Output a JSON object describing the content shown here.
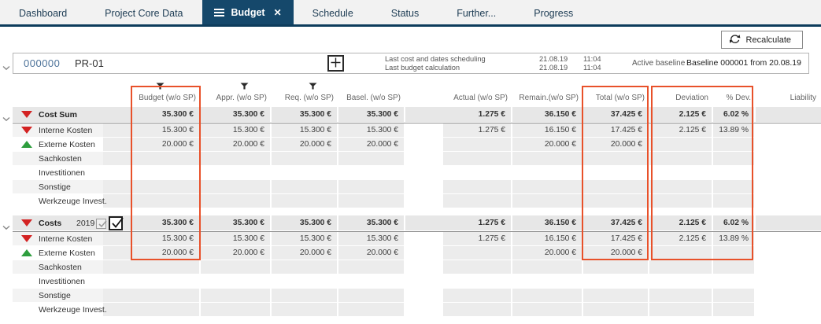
{
  "tabs": [
    {
      "label": "Dashboard",
      "active": false
    },
    {
      "label": "Project Core Data",
      "active": false
    },
    {
      "label": "Budget",
      "active": true
    },
    {
      "label": "Schedule",
      "active": false
    },
    {
      "label": "Status",
      "active": false
    },
    {
      "label": "Further...",
      "active": false
    },
    {
      "label": "Progress",
      "active": false
    }
  ],
  "toolbar": {
    "recalculate_label": "Recalculate"
  },
  "project_header": {
    "id": "000000",
    "name": "PR-01",
    "info": [
      {
        "label": "Last cost and dates scheduling",
        "date": "21.08.19",
        "time": "11:04"
      },
      {
        "label": "Last budget calculation",
        "date": "21.08.19",
        "time": "11:04"
      }
    ],
    "active_baseline_label": "Active baseline",
    "baseline_value": "Baseline 000001 from 20.08.19"
  },
  "icons": [
    "menu-icon",
    "close-tab-icon",
    "refresh-icon",
    "plus-icon",
    "chevron-down-icon",
    "filter-icon",
    "trend-down-icon",
    "trend-up-icon",
    "checkmark-icon"
  ],
  "table": {
    "columns": [
      {
        "label": "Budget (w/o SP)",
        "filtered": true
      },
      {
        "label": "Appr. (w/o SP)",
        "filtered": true
      },
      {
        "label": "Req. (w/o SP)",
        "filtered": true
      },
      {
        "label": "Basel. (w/o SP)",
        "filtered": false
      },
      {
        "label": "Actual (w/o SP)",
        "filtered": false
      },
      {
        "label": "Remain.(w/o SP)",
        "filtered": false
      },
      {
        "label": "Total (w/o SP)",
        "filtered": false
      },
      {
        "label": "Deviation",
        "filtered": false
      },
      {
        "label": "% Dev.",
        "filtered": false
      },
      {
        "label": "Liability",
        "filtered": false
      }
    ],
    "highlight_color": "#e8512a",
    "trend_colors": {
      "down": "#d32222",
      "up": "#2e9e3e"
    },
    "groups": [
      {
        "label": "Cost Sum",
        "year": null,
        "checkboxes": [],
        "trend": "down",
        "values": [
          "35.300 €",
          "35.300 €",
          "35.300 €",
          "35.300 €",
          "1.275 €",
          "36.150 €",
          "37.425 €",
          "2.125 €",
          "6.02 %",
          ""
        ],
        "rows": [
          {
            "label": "Interne Kosten",
            "trend": "down",
            "values": [
              "15.300 €",
              "15.300 €",
              "15.300 €",
              "15.300 €",
              "1.275 €",
              "16.150 €",
              "17.425 €",
              "2.125 €",
              "13.89 %",
              ""
            ]
          },
          {
            "label": "Externe Kosten",
            "trend": "up",
            "values": [
              "20.000 €",
              "20.000 €",
              "20.000 €",
              "20.000 €",
              "",
              "20.000 €",
              "20.000 €",
              "",
              "",
              ""
            ]
          },
          {
            "label": "Sachkosten",
            "trend": null,
            "values": [
              "",
              "",
              "",
              "",
              "",
              "",
              "",
              "",
              "",
              ""
            ]
          },
          {
            "label": "Investitionen",
            "trend": null,
            "values": [
              "",
              "",
              "",
              "",
              "",
              "",
              "",
              "",
              "",
              ""
            ]
          },
          {
            "label": "Sonstige",
            "trend": null,
            "values": [
              "",
              "",
              "",
              "",
              "",
              "",
              "",
              "",
              "",
              ""
            ]
          },
          {
            "label": "Werkzeuge Invest.",
            "trend": null,
            "values": [
              "",
              "",
              "",
              "",
              "",
              "",
              "",
              "",
              "",
              ""
            ]
          }
        ]
      },
      {
        "label": "Costs",
        "year": "2019",
        "checkboxes": [
          {
            "checked": true,
            "style": "disabled"
          },
          {
            "checked": true,
            "style": "active"
          }
        ],
        "trend": "down",
        "values": [
          "35.300 €",
          "35.300 €",
          "35.300 €",
          "35.300 €",
          "1.275 €",
          "36.150 €",
          "37.425 €",
          "2.125 €",
          "6.02 %",
          ""
        ],
        "rows": [
          {
            "label": "Interne Kosten",
            "trend": "down",
            "values": [
              "15.300 €",
              "15.300 €",
              "15.300 €",
              "15.300 €",
              "1.275 €",
              "16.150 €",
              "17.425 €",
              "2.125 €",
              "13.89 %",
              ""
            ]
          },
          {
            "label": "Externe Kosten",
            "trend": "up",
            "values": [
              "20.000 €",
              "20.000 €",
              "20.000 €",
              "20.000 €",
              "",
              "20.000 €",
              "20.000 €",
              "",
              "",
              ""
            ]
          },
          {
            "label": "Sachkosten",
            "trend": null,
            "values": [
              "",
              "",
              "",
              "",
              "",
              "",
              "",
              "",
              "",
              ""
            ]
          },
          {
            "label": "Investitionen",
            "trend": null,
            "values": [
              "",
              "",
              "",
              "",
              "",
              "",
              "",
              "",
              "",
              ""
            ]
          },
          {
            "label": "Sonstige",
            "trend": null,
            "values": [
              "",
              "",
              "",
              "",
              "",
              "",
              "",
              "",
              "",
              ""
            ]
          },
          {
            "label": "Werkzeuge Invest.",
            "trend": null,
            "values": [
              "",
              "",
              "",
              "",
              "",
              "",
              "",
              "",
              "",
              ""
            ]
          }
        ]
      }
    ]
  }
}
